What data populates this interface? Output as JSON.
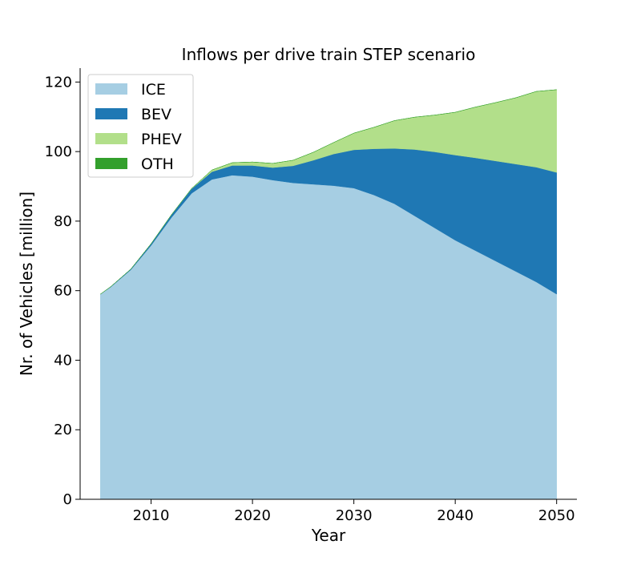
{
  "chart_data": {
    "type": "area",
    "stacked": true,
    "title": "Inflows per drive train STEP scenario",
    "xlabel": "Year",
    "ylabel": "Nr. of Vehicles [million]",
    "xlim": [
      2003,
      2052
    ],
    "ylim": [
      0,
      124
    ],
    "xticks": [
      2010,
      2020,
      2030,
      2040,
      2050
    ],
    "yticks": [
      0,
      20,
      40,
      60,
      80,
      100,
      120
    ],
    "grid": false,
    "legend_position": "top-left",
    "x": [
      2005,
      2006,
      2008,
      2010,
      2012,
      2014,
      2016,
      2018,
      2020,
      2022,
      2024,
      2026,
      2028,
      2030,
      2032,
      2034,
      2036,
      2038,
      2040,
      2042,
      2044,
      2046,
      2048,
      2050
    ],
    "series": [
      {
        "name": "ICE",
        "color": "#a6cee3",
        "values": [
          59,
          61,
          66,
          73,
          81,
          88,
          92,
          93.2,
          92.8,
          91.8,
          91,
          90.6,
          90.2,
          89.5,
          87.5,
          85,
          81.5,
          78,
          74.5,
          71.5,
          68.5,
          65.5,
          62.5,
          59
        ]
      },
      {
        "name": "BEV",
        "color": "#1f78b4",
        "values": [
          0,
          0.1,
          0.2,
          0.5,
          0.8,
          1.3,
          2.2,
          2.8,
          3.2,
          3.6,
          4.9,
          6.9,
          9.1,
          11,
          13.3,
          15.9,
          19.1,
          21.9,
          24.5,
          26.7,
          28.8,
          30.9,
          33,
          35
        ]
      },
      {
        "name": "PHEV",
        "color": "#b2df8a",
        "values": [
          0,
          0,
          0,
          0,
          0,
          0.1,
          0.5,
          0.8,
          1,
          1.2,
          1.6,
          2.3,
          3.3,
          4.8,
          6.2,
          8,
          9.3,
          10.6,
          12.3,
          14.6,
          16.8,
          19.1,
          21.8,
          23.8
        ]
      },
      {
        "name": "OTH",
        "color": "#33a02c",
        "values": [
          0,
          0,
          0,
          0,
          0,
          0,
          0,
          0,
          0,
          0,
          0,
          0,
          0,
          0,
          0,
          0,
          0,
          0,
          0,
          0,
          0,
          0,
          0,
          0
        ]
      }
    ]
  }
}
